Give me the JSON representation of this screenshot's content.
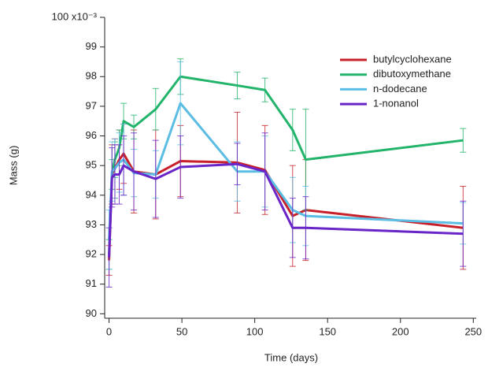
{
  "chart_data": {
    "type": "line",
    "xlabel": "Time (days)",
    "ylabel": "Mass (g)",
    "x": [
      0,
      2,
      4,
      7,
      10,
      17,
      32,
      49,
      88,
      107,
      126,
      135,
      243
    ],
    "series": [
      {
        "name": "butylcyclohexane",
        "color": "#c8202a",
        "values": [
          91.8,
          94.7,
          94.9,
          95.2,
          95.4,
          94.8,
          94.7,
          95.15,
          95.1,
          94.85,
          93.3,
          93.5,
          92.9
        ],
        "errors": [
          0.5,
          1.0,
          1.0,
          1.0,
          1.0,
          1.4,
          1.5,
          1.2,
          1.7,
          1.5,
          1.7,
          1.7,
          1.4
        ]
      },
      {
        "name": "dibutoxymethane",
        "color": "#21b46a",
        "values": [
          92.0,
          94.7,
          95.2,
          95.6,
          96.5,
          96.3,
          96.9,
          98.0,
          97.7,
          97.55,
          96.2,
          95.2,
          95.85
        ],
        "errors": [
          0.5,
          0.5,
          0.6,
          0.6,
          0.6,
          0.4,
          0.7,
          0.6,
          0.45,
          0.4,
          0.7,
          1.7,
          0.4
        ]
      },
      {
        "name": "n-dodecane",
        "color": "#5bbde3",
        "values": [
          92.5,
          94.8,
          94.9,
          95.1,
          95.2,
          94.75,
          94.7,
          97.1,
          94.8,
          94.8,
          93.5,
          93.3,
          93.05
        ],
        "errors": [
          1.0,
          1.0,
          1.0,
          1.0,
          1.2,
          0.8,
          0.8,
          1.4,
          1.0,
          1.2,
          1.1,
          1.0,
          0.7
        ]
      },
      {
        "name": "1-nonanol",
        "color": "#6a25c8",
        "values": [
          91.9,
          94.6,
          94.7,
          94.7,
          95.0,
          94.8,
          94.55,
          94.95,
          95.05,
          94.8,
          92.9,
          92.9,
          92.7
        ],
        "errors": [
          1.0,
          1.0,
          1.0,
          1.0,
          1.0,
          1.3,
          1.3,
          1.05,
          0.7,
          1.3,
          1.0,
          1.05,
          1.1
        ]
      }
    ],
    "xlim": [
      -3,
      252
    ],
    "xticks": [
      0,
      50,
      100,
      150,
      200,
      250
    ],
    "ylim": [
      89.85,
      100
    ],
    "yticks": [
      90,
      91,
      92,
      93,
      94,
      95,
      96,
      97,
      98,
      99,
      {
        "value": 100,
        "label": "100 x10⁻³"
      }
    ],
    "grid": false,
    "legend": "upper right"
  }
}
